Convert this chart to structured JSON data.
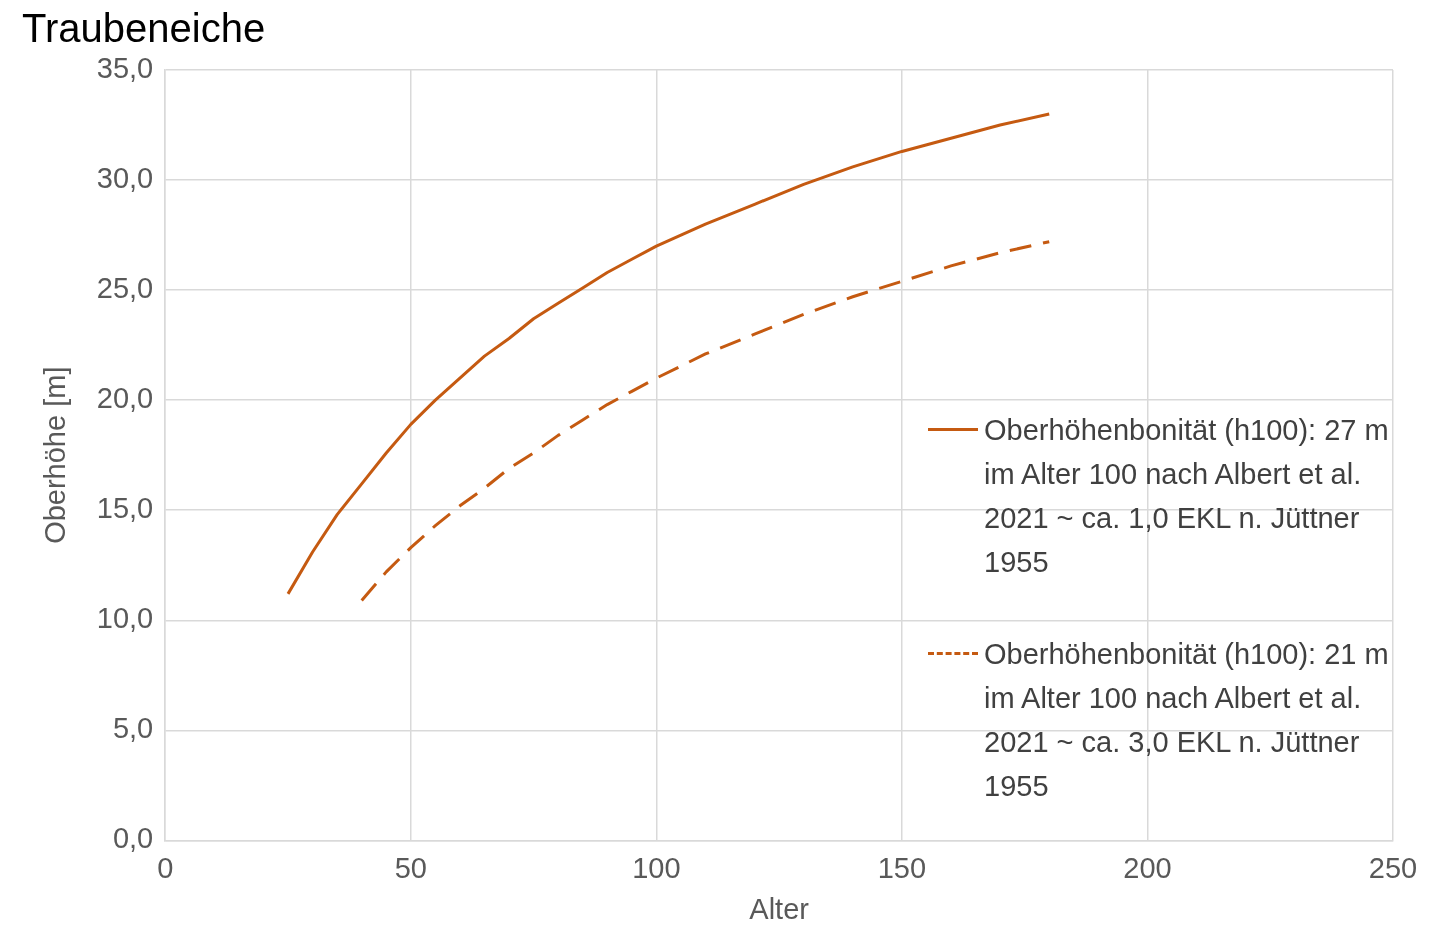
{
  "chart_data": {
    "type": "line",
    "title": "Traubeneiche",
    "xlabel": "Alter",
    "ylabel": "Oberhöhe [m]",
    "xlim": [
      0,
      250
    ],
    "xticks": [
      0,
      50,
      100,
      150,
      200,
      250
    ],
    "ylim": [
      0,
      35
    ],
    "yticks": [
      {
        "value": 0,
        "label": "0,0"
      },
      {
        "value": 5,
        "label": "5,0"
      },
      {
        "value": 10,
        "label": "10,0"
      },
      {
        "value": 15,
        "label": "15,0"
      },
      {
        "value": 20,
        "label": "20,0"
      },
      {
        "value": 25,
        "label": "25,0"
      },
      {
        "value": 30,
        "label": "30,0"
      },
      {
        "value": 35,
        "label": "35,0"
      }
    ],
    "grid": true,
    "legend": "right",
    "marker": "none",
    "series": [
      {
        "name": "Oberhöhenbonität (h100): 27 m im Alter 100 nach Albert et al.  2021  ~ ca. 1,0 EKL n. Jüttner 1955",
        "color": "#c55a11",
        "line_style": "solid",
        "x": [
          25,
          30,
          35,
          40,
          45,
          50,
          55,
          60,
          65,
          70,
          75,
          80,
          85,
          90,
          95,
          100,
          110,
          120,
          130,
          140,
          150,
          160,
          170,
          180
        ],
        "values": [
          11.2,
          13.1,
          14.8,
          16.2,
          17.6,
          18.9,
          20.0,
          21.0,
          22.0,
          22.8,
          23.7,
          24.4,
          25.1,
          25.8,
          26.4,
          27.0,
          28.0,
          28.9,
          29.8,
          30.6,
          31.3,
          31.9,
          32.5,
          33.0
        ]
      },
      {
        "name": "Oberhöhenbonität (h100): 21 m im Alter 100 nach Albert et al.  2021 ~ ca. 3,0 EKL  n. Jüttner 1955",
        "color": "#c55a11",
        "line_style": "dashed",
        "x": [
          40,
          45,
          50,
          55,
          60,
          65,
          70,
          75,
          80,
          85,
          90,
          95,
          100,
          110,
          120,
          130,
          140,
          150,
          160,
          170,
          180
        ],
        "values": [
          10.9,
          12.2,
          13.3,
          14.3,
          15.2,
          16.0,
          16.9,
          17.6,
          18.4,
          19.1,
          19.8,
          20.4,
          21.0,
          22.1,
          23.0,
          23.9,
          24.7,
          25.4,
          26.1,
          26.7,
          27.2
        ]
      }
    ]
  }
}
